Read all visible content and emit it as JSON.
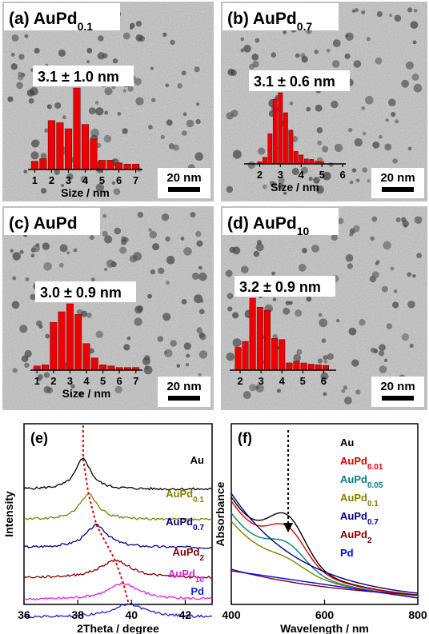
{
  "panels": [
    {
      "id": "a",
      "letter": "(a) ",
      "name": "AuPd",
      "sub": "0.1",
      "stat": "3.1 ± 1.0 nm",
      "scale_bar": "20 nm",
      "chart_data": {
        "type": "bar",
        "xlabel": "Size / nm",
        "xticks": [
          "1",
          "2",
          "3",
          "4",
          "5",
          "6",
          "7"
        ],
        "xlim": [
          0.6,
          7.4
        ],
        "centers": [
          1.0,
          1.5,
          2.0,
          2.5,
          3.0,
          3.5,
          4.0,
          4.5,
          5.0,
          5.5,
          6.0,
          6.5,
          7.0
        ],
        "values": [
          1.5,
          2.0,
          9.0,
          8.6,
          7.5,
          15.0,
          8.3,
          5.6,
          1.7,
          1.7,
          1.2,
          1.0,
          1.0
        ],
        "ymax": 15
      }
    },
    {
      "id": "b",
      "letter": "(b) ",
      "name": "AuPd",
      "sub": "0.7",
      "stat": "3.1 ± 0.6 nm",
      "scale_bar": "20 nm",
      "chart_data": {
        "type": "bar",
        "xlabel": "Size / nm",
        "xticks": [
          "2",
          "3",
          "4",
          "5",
          "6"
        ],
        "xlim": [
          1.25,
          6.15
        ],
        "centers": [
          2.0,
          2.25,
          2.5,
          2.75,
          3.0,
          3.25,
          3.5,
          3.75,
          4.0,
          4.25,
          4.5,
          4.75,
          5.0
        ],
        "values": [
          0.5,
          1.5,
          6.8,
          14.5,
          16.0,
          11.5,
          7.6,
          2.8,
          2.0,
          1.1,
          1.0,
          0.6,
          0.5
        ],
        "ymax": 16
      }
    },
    {
      "id": "c",
      "letter": "(c) ",
      "name": "AuPd",
      "sub": "",
      "stat": "3.0 ± 0.9 nm",
      "scale_bar": "20 nm",
      "chart_data": {
        "type": "bar",
        "xlabel": "Size / nm",
        "xticks": [
          "1",
          "2",
          "3",
          "4",
          "5",
          "6",
          "7"
        ],
        "xlim": [
          0.6,
          7.4
        ],
        "centers": [
          1.0,
          1.5,
          2.0,
          2.5,
          3.0,
          3.5,
          4.0,
          4.5,
          5.0,
          5.5,
          6.0,
          6.5,
          7.0
        ],
        "values": [
          0.8,
          1.0,
          9.0,
          11.0,
          12.5,
          10.5,
          5.0,
          2.3,
          1.0,
          0.8,
          0.5,
          0.5,
          0.5
        ],
        "ymax": 12.5
      }
    },
    {
      "id": "d",
      "letter": "(d) ",
      "name": "AuPd",
      "sub": "10",
      "stat": "3.2 ± 0.9 nm",
      "scale_bar": "20 nm",
      "chart_data": {
        "type": "bar",
        "xlabel": "",
        "xticks": [
          "2",
          "3",
          "4",
          "5",
          "6"
        ],
        "xlim": [
          1.5,
          6.6
        ],
        "centers": [
          1.9,
          2.25,
          2.6,
          2.95,
          3.3,
          3.65,
          4.0,
          4.35,
          4.7,
          5.05,
          5.4,
          5.75,
          6.1
        ],
        "values": [
          3.8,
          4.8,
          12.0,
          10.5,
          10.0,
          5.3,
          5.1,
          1.2,
          1.5,
          1.2,
          1.0,
          0.9,
          0.8
        ],
        "ymax": 12
      }
    }
  ],
  "xrd": {
    "letter": "(e)",
    "ylabel": "Intensity",
    "xlabel": "2Theta / degree",
    "xticks": [
      "36",
      "38",
      "40",
      "42"
    ],
    "chart_data": {
      "type": "line",
      "xlim": [
        36,
        43
      ],
      "series": [
        {
          "name": "Au",
          "sub": "",
          "color": "#000000",
          "peak": 38.2,
          "height": 38,
          "width": 0.35
        },
        {
          "name": "AuPd",
          "sub": "0.1",
          "color": "#808000",
          "peak": 38.4,
          "height": 32,
          "width": 0.4
        },
        {
          "name": "AuPd",
          "sub": "0.7",
          "color": "#000080",
          "peak": 38.7,
          "height": 28,
          "width": 0.5
        },
        {
          "name": "AuPd",
          "sub": "2",
          "color": "#800000",
          "peak": 39.4,
          "height": 22,
          "width": 0.7
        },
        {
          "name": "AuPd",
          "sub": "10",
          "color": "#e020e0",
          "peak": 39.7,
          "height": 20,
          "width": 0.7
        },
        {
          "name": "Pd",
          "sub": "",
          "color": "#2020d0",
          "peak": 39.9,
          "height": 16,
          "width": 0.75
        }
      ]
    }
  },
  "uv": {
    "letter": "(f)",
    "ylabel": "Absorbance",
    "xlabel": "Wavelength / nm",
    "xticks": [
      "400",
      "600",
      "800"
    ],
    "chart_data": {
      "type": "line",
      "xlim": [
        400,
        800
      ],
      "legend": [
        {
          "name": "Au",
          "sub": "",
          "color": "#000000"
        },
        {
          "name": "AuPd",
          "sub": "0.01",
          "color": "#e00000"
        },
        {
          "name": "AuPd",
          "sub": "0.05",
          "color": "#008080"
        },
        {
          "name": "AuPd",
          "sub": "0.1",
          "color": "#808000"
        },
        {
          "name": "AuPd",
          "sub": "0.7",
          "color": "#000080"
        },
        {
          "name": "AuPd",
          "sub": "2",
          "color": "#800000"
        },
        {
          "name": "Pd",
          "sub": "",
          "color": "#0000ff"
        }
      ]
    }
  }
}
